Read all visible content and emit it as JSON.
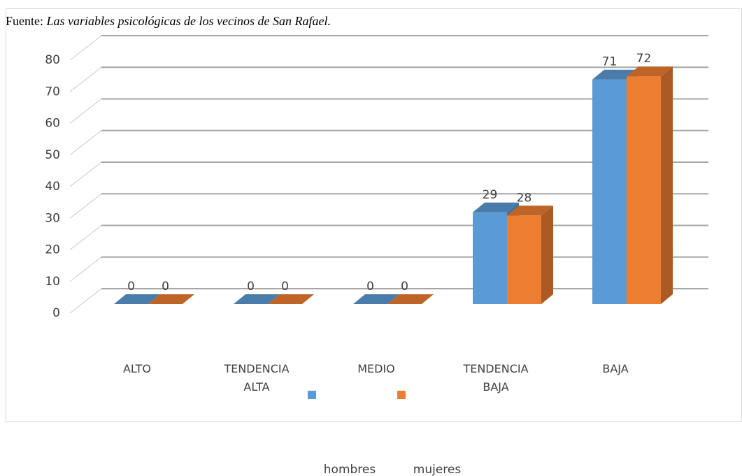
{
  "chart_data": {
    "type": "bar3d",
    "title_prefix": "Fuente:",
    "title": "Las variables psicológicas de los vecinos de San Rafael.",
    "categories": [
      "ALTO",
      "TENDENCIA ALTA",
      "MEDIO",
      "TENDENCIA BAJA",
      "BAJA"
    ],
    "series": [
      {
        "name": "hombres",
        "color": "#5b9bd5",
        "values": [
          0,
          0,
          0,
          29,
          71
        ]
      },
      {
        "name": "mujeres",
        "color": "#ed7d31",
        "values": [
          0,
          0,
          0,
          28,
          72
        ]
      }
    ],
    "ylim": [
      0,
      80
    ],
    "yticks": [
      0,
      10,
      20,
      30,
      40,
      50,
      60,
      70,
      80
    ],
    "grid": true
  }
}
